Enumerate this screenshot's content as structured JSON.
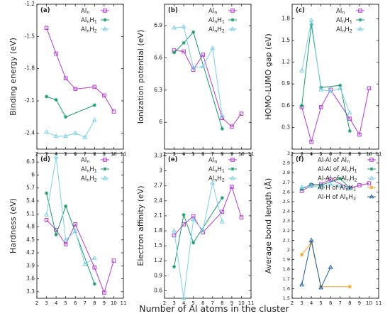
{
  "colors": {
    "Al": "#b23bd0",
    "AlH1": "#1a9a6e",
    "AlH2": "#7dcfe6",
    "AlH_H1": "#f5a623",
    "AlH_H2": "#1f5fa0"
  },
  "xlabel": "Number of Al atoms in the cluster",
  "chart_data": [
    {
      "panel": "a",
      "type": "line",
      "panel_label": "(a)",
      "ylabel": "Binding energy (eV)",
      "xlim": [
        2,
        11
      ],
      "ylim": [
        -2.55,
        -1.2
      ],
      "yticks": [
        "-1.2",
        "-1.5",
        "-1.8",
        "-2.1",
        "-2.4"
      ],
      "ytick_vals": [
        -1.2,
        -1.5,
        -1.8,
        -2.1,
        -2.4
      ],
      "legend": "top-right",
      "series": [
        {
          "name": "Al",
          "sub": "n",
          "label_suffix": "",
          "color_key": "Al",
          "marker": "square",
          "x": [
            3,
            4,
            5,
            6,
            8,
            9,
            10
          ],
          "y": [
            -1.42,
            -1.66,
            -1.89,
            -1.99,
            -1.97,
            -2.05,
            -2.2
          ]
        },
        {
          "name": "Al",
          "sub": "n",
          "label_suffix": "H",
          "sub2": "1",
          "color_key": "AlH1",
          "marker": "star",
          "x": [
            3,
            4,
            5,
            8
          ],
          "y": [
            -2.06,
            -2.09,
            -2.25,
            -2.14
          ]
        },
        {
          "name": "Al",
          "sub": "n",
          "label_suffix": "H",
          "sub2": "2",
          "color_key": "AlH2",
          "marker": "tri",
          "x": [
            3,
            4,
            5,
            6,
            7,
            8
          ],
          "y": [
            -2.39,
            -2.43,
            -2.43,
            -2.4,
            -2.44,
            -2.28
          ]
        }
      ]
    },
    {
      "panel": "b",
      "type": "line",
      "panel_label": "(b)",
      "ylabel": "Ionization potential (eV)",
      "xlim": [
        2,
        11
      ],
      "ylim": [
        5.75,
        7.1
      ],
      "yticks": [
        "6.9",
        "6.6",
        "6.3",
        "6"
      ],
      "ytick_vals": [
        6.9,
        6.6,
        6.3,
        6.0
      ],
      "legend": "top-right",
      "series": [
        {
          "name": "Al",
          "sub": "n",
          "label_suffix": "",
          "color_key": "Al",
          "marker": "square",
          "x": [
            3,
            4,
            5,
            6,
            8,
            9,
            10
          ],
          "y": [
            6.67,
            6.66,
            6.49,
            6.63,
            6.04,
            5.96,
            6.08
          ]
        },
        {
          "name": "Al",
          "sub": "n",
          "label_suffix": "H",
          "sub2": "1",
          "color_key": "AlH1",
          "marker": "star",
          "x": [
            3,
            4,
            5,
            8
          ],
          "y": [
            6.65,
            6.74,
            6.84,
            5.94
          ]
        },
        {
          "name": "Al",
          "sub": "n",
          "label_suffix": "H",
          "sub2": "2",
          "color_key": "AlH2",
          "marker": "tri",
          "x": [
            3,
            4,
            5,
            6,
            7,
            8
          ],
          "y": [
            6.88,
            6.89,
            6.51,
            6.52,
            6.69,
            6.06
          ]
        }
      ]
    },
    {
      "panel": "c",
      "type": "line",
      "panel_label": "(c)",
      "ylabel": "HOMO-LUMO gap (eV)",
      "xlim": [
        2,
        11
      ],
      "ylim": [
        0,
        2.0
      ],
      "yticks": [
        "1.8",
        "1.5",
        "1.2",
        "0.9",
        "0.6",
        "0.3"
      ],
      "ytick_vals": [
        1.8,
        1.5,
        1.2,
        0.9,
        0.6,
        0.3
      ],
      "legend": "top-right",
      "series": [
        {
          "name": "Al",
          "sub": "n",
          "label_suffix": "",
          "color_key": "Al",
          "marker": "square",
          "x": [
            3,
            4,
            5,
            6,
            8,
            9,
            10
          ],
          "y": [
            0.58,
            0.1,
            0.58,
            0.82,
            0.42,
            0.2,
            0.84
          ]
        },
        {
          "name": "Al",
          "sub": "n",
          "label_suffix": "H",
          "sub2": "1",
          "color_key": "AlH1",
          "marker": "star",
          "x": [
            3,
            4,
            5,
            7,
            8
          ],
          "y": [
            0.6,
            1.72,
            0.85,
            0.88,
            0.25
          ]
        },
        {
          "name": "Al",
          "sub": "n",
          "label_suffix": "H",
          "sub2": "2",
          "color_key": "AlH2",
          "marker": "tri",
          "x": [
            3,
            4,
            5,
            6,
            7,
            8
          ],
          "y": [
            1.08,
            1.78,
            0.82,
            0.8,
            0.84,
            0.5
          ]
        }
      ]
    },
    {
      "panel": "d",
      "type": "line",
      "panel_label": "(d)",
      "ylabel": "Hardness (eV)",
      "xlim": [
        2,
        11
      ],
      "ylim": [
        3.15,
        6.5
      ],
      "yticks": [
        "6.3",
        "6",
        "5.7",
        "5.4",
        "5.1",
        "4.8",
        "4.5",
        "4.2",
        "3.9",
        "3.6",
        "3.3"
      ],
      "ytick_vals": [
        6.3,
        6.0,
        5.7,
        5.4,
        5.1,
        4.8,
        4.5,
        4.2,
        3.9,
        3.6,
        3.3
      ],
      "legend": "top-right",
      "series": [
        {
          "name": "Al",
          "sub": "n",
          "label_suffix": "",
          "color_key": "Al",
          "marker": "square",
          "x": [
            3,
            4,
            5,
            6,
            8,
            9,
            10
          ],
          "y": [
            4.96,
            4.73,
            4.4,
            4.86,
            3.86,
            3.28,
            4.02
          ]
        },
        {
          "name": "Al",
          "sub": "n",
          "label_suffix": "H",
          "sub2": "1",
          "color_key": "AlH1",
          "marker": "star",
          "x": [
            3,
            4,
            5,
            8
          ],
          "y": [
            5.58,
            4.62,
            5.28,
            3.48
          ]
        },
        {
          "name": "Al",
          "sub": "n",
          "label_suffix": "H",
          "sub2": "2",
          "color_key": "AlH2",
          "marker": "tri",
          "x": [
            3,
            4,
            5,
            6,
            7,
            8
          ],
          "y": [
            5.08,
            6.42,
            4.5,
            4.7,
            3.94,
            4.08
          ]
        }
      ]
    },
    {
      "panel": "e",
      "type": "line",
      "panel_label": "(e)",
      "ylabel": "Electron affinity (eV)",
      "xlim": [
        2,
        11
      ],
      "ylim": [
        0.45,
        3.35
      ],
      "yticks": [
        "3.3",
        "3",
        "2.7",
        "2.4",
        "2.1",
        "1.8",
        "1.5",
        "1.2",
        "0.9",
        "0.6"
      ],
      "ytick_vals": [
        3.3,
        3.0,
        2.7,
        2.4,
        2.1,
        1.8,
        1.5,
        1.2,
        0.9,
        0.6
      ],
      "legend": "top-right",
      "series": [
        {
          "name": "Al",
          "sub": "n",
          "label_suffix": "",
          "color_key": "Al",
          "marker": "square",
          "x": [
            3,
            4,
            5,
            6,
            8,
            9,
            10
          ],
          "y": [
            1.71,
            1.93,
            2.09,
            1.77,
            2.18,
            2.68,
            2.07
          ]
        },
        {
          "name": "Al",
          "sub": "n",
          "label_suffix": "H",
          "sub2": "1",
          "color_key": "AlH1",
          "marker": "star",
          "x": [
            3,
            4,
            5,
            8
          ],
          "y": [
            1.08,
            2.12,
            1.56,
            2.46
          ]
        },
        {
          "name": "Al",
          "sub": "n",
          "label_suffix": "H",
          "sub2": "2",
          "color_key": "AlH2",
          "marker": "tri",
          "x": [
            3,
            4,
            5,
            6,
            7,
            8
          ],
          "y": [
            1.8,
            0.45,
            2.03,
            1.81,
            2.76,
            1.98
          ]
        }
      ]
    },
    {
      "panel": "f",
      "type": "line",
      "panel_label": "(f)",
      "ylabel": "Average bond length (Å)",
      "xlim": [
        2,
        11
      ],
      "ylim": [
        1.5,
        3.0
      ],
      "yticks": [
        "3",
        "2.9",
        "2.8",
        "2.7",
        "2.6",
        "2.5",
        "2.4",
        "2.3",
        "2.2",
        "2.1",
        "2",
        "1.9",
        "1.8",
        "1.7",
        "1.6",
        "1.5"
      ],
      "ytick_vals": [
        3.0,
        2.9,
        2.8,
        2.7,
        2.6,
        2.5,
        2.4,
        2.3,
        2.2,
        2.1,
        2.0,
        1.9,
        1.8,
        1.7,
        1.6,
        1.5
      ],
      "legend": "top-right",
      "series": [
        {
          "label": "Al-Al of Al",
          "sub": "n",
          "sub2": "",
          "after": "",
          "color_key": "Al",
          "marker": "square",
          "x": [
            3,
            4,
            5,
            6,
            8,
            9,
            10
          ],
          "y": [
            2.61,
            2.67,
            2.68,
            2.73,
            2.64,
            2.67,
            2.69
          ]
        },
        {
          "label": "Al-Al of Al",
          "sub": "n",
          "after": "H",
          "sub2": "1",
          "color_key": "AlH1",
          "marker": "star",
          "x": [
            3,
            4,
            5,
            7,
            8
          ],
          "y": [
            2.63,
            2.68,
            2.67,
            2.74,
            2.64
          ]
        },
        {
          "label": "Al-Al of Al",
          "sub": "n",
          "after": "H",
          "sub2": "2",
          "color_key": "AlH2",
          "marker": "tri",
          "x": [
            3,
            4,
            5,
            6,
            7,
            8
          ],
          "y": [
            2.65,
            2.66,
            2.65,
            2.68,
            2.66,
            2.64
          ]
        },
        {
          "label": "Al-H of Al",
          "sub": "n",
          "after": "H",
          "sub2": "1",
          "color_key": "AlH_H1",
          "marker": "star",
          "x": [
            3,
            4,
            5,
            8
          ],
          "y": [
            1.95,
            2.08,
            1.62,
            1.62
          ]
        },
        {
          "label": "Al-H of Al",
          "sub": "n",
          "after": "H",
          "sub2": "2",
          "color_key": "AlH_H2",
          "marker": "tri",
          "x": [
            3,
            4,
            5,
            6
          ],
          "y": [
            1.64,
            2.1,
            1.61,
            1.82
          ]
        }
      ]
    }
  ],
  "xticks": [
    2,
    3,
    4,
    5,
    6,
    7,
    8,
    9,
    10,
    11
  ]
}
